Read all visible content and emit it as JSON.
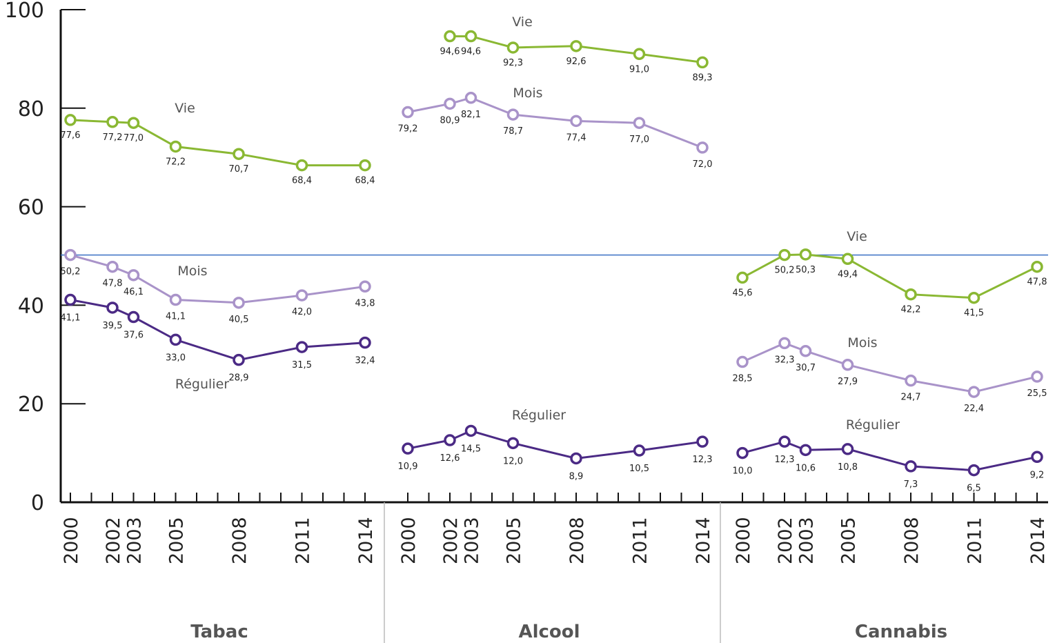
{
  "chart_data": {
    "type": "line",
    "ylim": [
      0,
      100
    ],
    "yticks": [
      "0",
      "20",
      "40",
      "60",
      "80",
      "100"
    ],
    "reference_line": 50.2,
    "colors": {
      "Vie": "#8ab833",
      "Mois": "#a993c9",
      "Régulier": "#4b2a85",
      "axis": "#111111",
      "reference": "#3a6fc4"
    },
    "groups": [
      {
        "name": "Tabac",
        "years": [
          "2000",
          "2002",
          "2003",
          "2005",
          "2008",
          "2011",
          "2014"
        ],
        "series": [
          {
            "name": "Vie",
            "values": [
              77.6,
              77.2,
              77.0,
              72.2,
              70.7,
              68.4,
              68.4
            ],
            "labels": [
              "77,6",
              "77,2",
              "77,0",
              "72,2",
              "70,7",
              "68,4",
              "68,4"
            ]
          },
          {
            "name": "Mois",
            "values": [
              50.2,
              47.8,
              46.1,
              41.1,
              40.5,
              42.0,
              43.8
            ],
            "labels": [
              "50,2",
              "47,8",
              "46,1",
              "41,1",
              "40,5",
              "42,0",
              "43,8"
            ]
          },
          {
            "name": "Régulier",
            "values": [
              41.1,
              39.5,
              37.6,
              33.0,
              28.9,
              31.5,
              32.4
            ],
            "labels": [
              "41,1",
              "39,5",
              "37,6",
              "33,0",
              "28,9",
              "31,5",
              "32,4"
            ]
          }
        ]
      },
      {
        "name": "Alcool",
        "years": [
          "2000",
          "2002",
          "2003",
          "2005",
          "2008",
          "2011",
          "2014"
        ],
        "series": [
          {
            "name": "Vie",
            "values": [
              null,
              94.6,
              94.6,
              92.3,
              92.6,
              91.0,
              89.3
            ],
            "labels": [
              null,
              "94,6",
              "94,6",
              "92,3",
              "92,6",
              "91,0",
              "89,3"
            ]
          },
          {
            "name": "Mois",
            "values": [
              79.2,
              80.9,
              82.1,
              78.7,
              77.4,
              77.0,
              72.0
            ],
            "labels": [
              "79,2",
              "80,9",
              "82,1",
              "78,7",
              "77,4",
              "77,0",
              "72,0"
            ]
          },
          {
            "name": "Régulier",
            "values": [
              10.9,
              12.6,
              14.5,
              12.0,
              8.9,
              10.5,
              12.3
            ],
            "labels": [
              "10,9",
              "12,6",
              "14,5",
              "12,0",
              "8,9",
              "10,5",
              "12,3"
            ]
          }
        ]
      },
      {
        "name": "Cannabis",
        "years": [
          "2000",
          "2002",
          "2003",
          "2005",
          "2008",
          "2011",
          "2014"
        ],
        "series": [
          {
            "name": "Vie",
            "values": [
              45.6,
              50.2,
              50.3,
              49.4,
              42.2,
              41.5,
              47.8
            ],
            "labels": [
              "45,6",
              "50,2",
              "50,3",
              "49,4",
              "42,2",
              "41,5",
              "47,8"
            ]
          },
          {
            "name": "Mois",
            "values": [
              28.5,
              32.3,
              30.7,
              27.9,
              24.7,
              22.4,
              25.5
            ],
            "labels": [
              "28,5",
              "32,3",
              "30,7",
              "27,9",
              "24,7",
              "22,4",
              "25,5"
            ]
          },
          {
            "name": "Régulier",
            "values": [
              10.0,
              12.3,
              10.6,
              10.8,
              7.3,
              6.5,
              9.2
            ],
            "labels": [
              "10,0",
              "12,3",
              "10,6",
              "10,8",
              "7,3",
              "6,5",
              "9,2"
            ]
          }
        ]
      }
    ]
  }
}
